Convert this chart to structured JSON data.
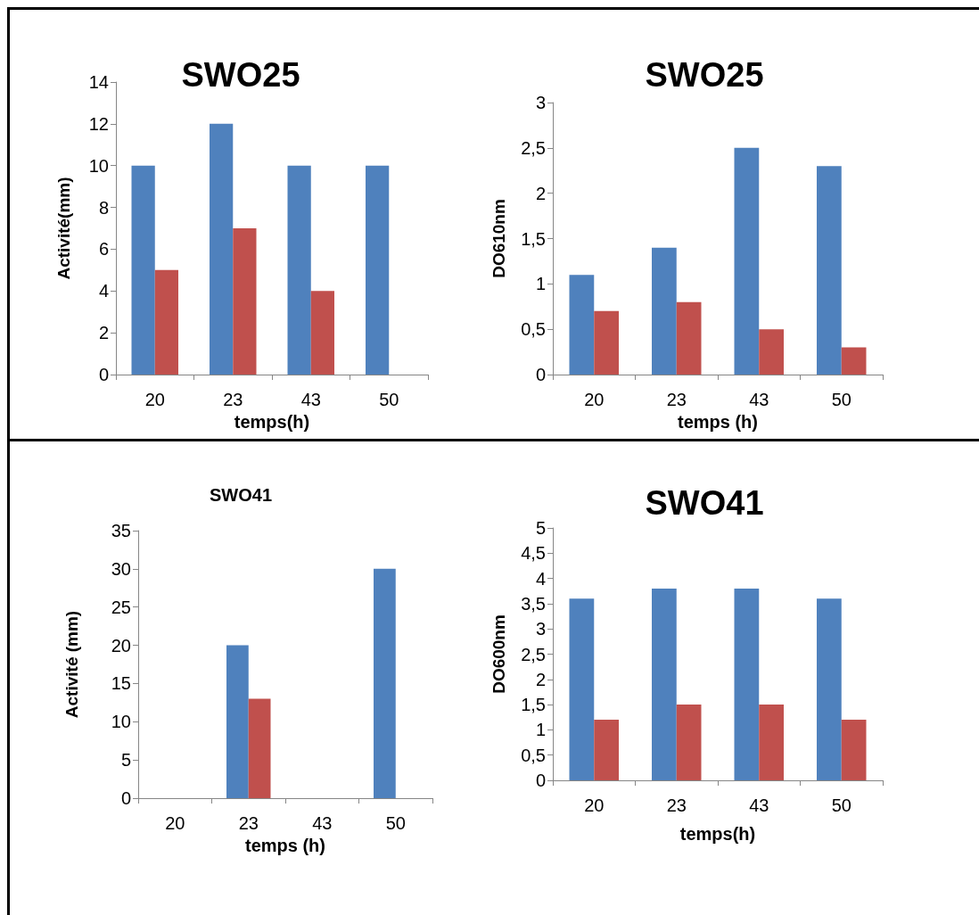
{
  "chart_data": [
    {
      "type": "bar",
      "title": "SWO25",
      "xlabel": "temps(h)",
      "ylabel": "Activité(mm)",
      "categories": [
        "20",
        "23",
        "43",
        "50"
      ],
      "series": [
        {
          "color": "#4f81bd",
          "values": [
            10,
            12,
            10,
            10
          ]
        },
        {
          "color": "#c0504d",
          "values": [
            5,
            7,
            4,
            0
          ]
        }
      ],
      "ylim": [
        0,
        14
      ],
      "yticks": [
        0,
        2,
        4,
        6,
        8,
        10,
        12,
        14
      ],
      "grid": false
    },
    {
      "type": "bar",
      "title": "SWO25",
      "xlabel": "temps (h)",
      "ylabel": "DO610nm",
      "categories": [
        "20",
        "23",
        "43",
        "50"
      ],
      "series": [
        {
          "color": "#4f81bd",
          "values": [
            1.1,
            1.4,
            2.5,
            2.3
          ]
        },
        {
          "color": "#c0504d",
          "values": [
            0.7,
            0.8,
            0.5,
            0.3
          ]
        }
      ],
      "ylim": [
        0,
        3
      ],
      "yticks": [
        0,
        {
          "value": 0.5,
          "label": "0,5"
        },
        1,
        {
          "value": 1.5,
          "label": "1,5"
        },
        2,
        {
          "value": 2.5,
          "label": "2,5"
        },
        3
      ],
      "grid": false
    },
    {
      "type": "bar",
      "title": "SWO41",
      "xlabel": "temps (h)",
      "ylabel": "Activité (mm)",
      "categories": [
        "20",
        "23",
        "43",
        "50"
      ],
      "series": [
        {
          "color": "#4f81bd",
          "values": [
            0,
            20,
            0,
            30
          ]
        },
        {
          "color": "#c0504d",
          "values": [
            0,
            13,
            0,
            0
          ]
        }
      ],
      "ylim": [
        0,
        35
      ],
      "yticks": [
        0,
        5,
        10,
        15,
        20,
        25,
        30,
        35
      ],
      "grid": false
    },
    {
      "type": "bar",
      "title": "SWO41",
      "xlabel": "temps(h)",
      "ylabel": "DO600nm",
      "categories": [
        "20",
        "23",
        "43",
        "50"
      ],
      "series": [
        {
          "color": "#4f81bd",
          "values": [
            3.6,
            3.8,
            3.8,
            3.6
          ]
        },
        {
          "color": "#c0504d",
          "values": [
            1.2,
            1.5,
            1.5,
            1.2
          ]
        }
      ],
      "ylim": [
        0,
        5
      ],
      "yticks": [
        0,
        {
          "value": 0.5,
          "label": "0,5"
        },
        1,
        {
          "value": 1.5,
          "label": "1,5"
        },
        2,
        {
          "value": 2.5,
          "label": "2,5"
        },
        3,
        {
          "value": 3.5,
          "label": "3,5"
        },
        4,
        {
          "value": 4.5,
          "label": "4,5"
        },
        5
      ],
      "grid": false
    }
  ]
}
